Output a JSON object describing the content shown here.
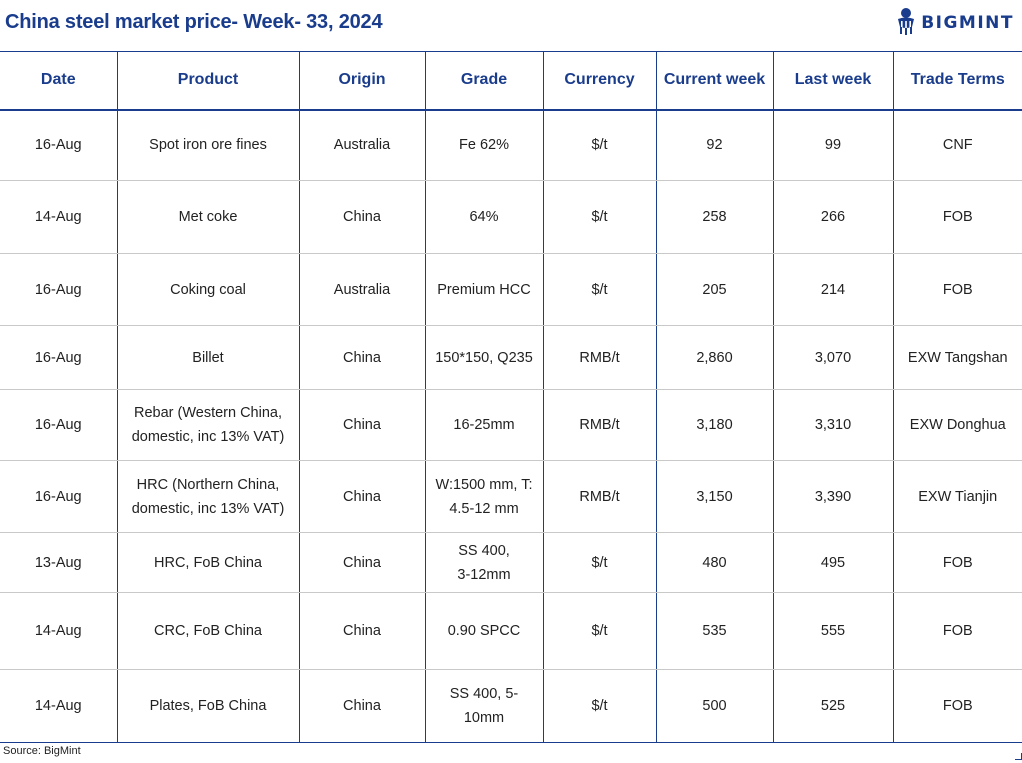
{
  "title": "China steel market price- Week- 33, 2024",
  "logo": {
    "text": "BIGMINT",
    "icon": "bigmint-logo-icon"
  },
  "colors": {
    "accent": "#1a3c8c",
    "row_divider": "#c9c9c9",
    "text": "#222222"
  },
  "table": {
    "headers": [
      "Date",
      "Product",
      "Origin",
      "Grade",
      "Currency",
      "Current week",
      "Last week",
      "Trade Terms"
    ],
    "rows": [
      {
        "date": "16-Aug",
        "product": [
          "Spot iron ore fines"
        ],
        "origin": "Australia",
        "grade": [
          "Fe 62%"
        ],
        "currency": "$/t",
        "current": "92",
        "last": "99",
        "terms": "CNF"
      },
      {
        "date": "14-Aug",
        "product": [
          "Met coke"
        ],
        "origin": "China",
        "grade": [
          "64%"
        ],
        "currency": "$/t",
        "current": "258",
        "last": "266",
        "terms": "FOB"
      },
      {
        "date": "16-Aug",
        "product": [
          "Coking coal"
        ],
        "origin": "Australia",
        "grade": [
          "Premium HCC"
        ],
        "currency": "$/t",
        "current": "205",
        "last": "214",
        "terms": "FOB"
      },
      {
        "date": "16-Aug",
        "product": [
          "Billet"
        ],
        "origin": "China",
        "grade": [
          "150*150, Q235"
        ],
        "currency": "RMB/t",
        "current": "2,860",
        "last": "3,070",
        "terms": "EXW Tangshan"
      },
      {
        "date": "16-Aug",
        "product": [
          "Rebar (Western China,",
          "domestic, inc 13% VAT)"
        ],
        "origin": "China",
        "grade": [
          "16-25mm"
        ],
        "currency": "RMB/t",
        "current": "3,180",
        "last": "3,310",
        "terms": "EXW Donghua"
      },
      {
        "date": "16-Aug",
        "product": [
          "HRC (Northern China,",
          "domestic, inc 13% VAT)"
        ],
        "origin": "China",
        "grade": [
          "W:1500 mm, T:",
          "4.5-12 mm"
        ],
        "currency": "RMB/t",
        "current": "3,150",
        "last": "3,390",
        "terms": "EXW Tianjin"
      },
      {
        "date": "13-Aug",
        "product": [
          "HRC, FoB China"
        ],
        "origin": "China",
        "grade": [
          "SS 400,",
          "3-12mm"
        ],
        "currency": "$/t",
        "current": "480",
        "last": "495",
        "terms": "FOB"
      },
      {
        "date": "14-Aug",
        "product": [
          "CRC, FoB China"
        ],
        "origin": "China",
        "grade": [
          "0.90 SPCC"
        ],
        "currency": "$/t",
        "current": "535",
        "last": "555",
        "terms": "FOB"
      },
      {
        "date": "14-Aug",
        "product": [
          "Plates, FoB China"
        ],
        "origin": "China",
        "grade": [
          "SS 400, 5-",
          "10mm"
        ],
        "currency": "$/t",
        "current": "500",
        "last": "525",
        "terms": "FOB"
      }
    ]
  },
  "source": "Source: BigMint"
}
